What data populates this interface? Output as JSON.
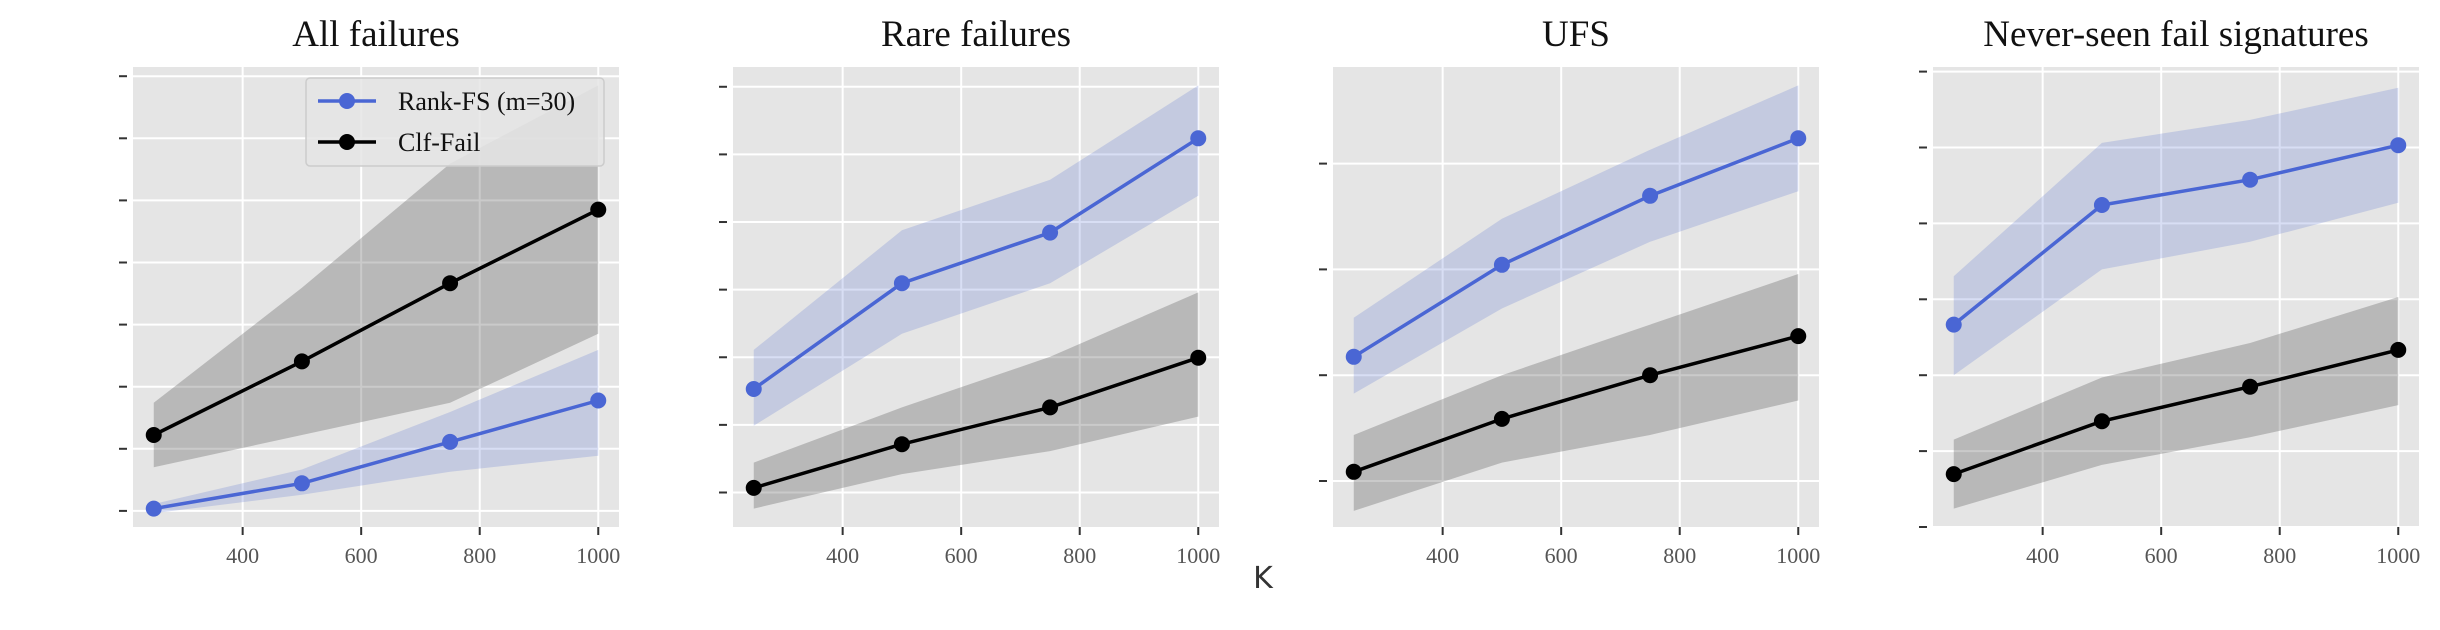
{
  "figure": {
    "xlabel": "K"
  },
  "legend": {
    "placement": "top-right of first panel"
  },
  "colors": {
    "Rank-FS (m=30)": "#4a66d4",
    "Clf-Fail": "#000000",
    "rank_band": "rgba(100,125,210,0.25)",
    "clf_band": "rgba(90,90,90,0.32)",
    "panel_bg": "#e5e5e5",
    "grid": "#ffffff"
  },
  "chart_data": [
    {
      "type": "line",
      "title": "All failures",
      "xlabel": "",
      "ylabel": "",
      "x": [
        250,
        500,
        750,
        1000
      ],
      "xlim": [
        215,
        1035
      ],
      "xticks": [
        400,
        600,
        800,
        1000
      ],
      "ylim": [
        0,
        1
      ],
      "yticks": [
        0.035,
        0.17,
        0.305,
        0.44,
        0.575,
        0.71,
        0.845,
        0.98
      ],
      "grid": true,
      "legend": true,
      "series": [
        {
          "name": "Rank-FS (m=30)",
          "values": [
            0.04,
            0.095,
            0.185,
            0.275
          ],
          "lower": [
            0.03,
            0.07,
            0.12,
            0.155
          ],
          "upper": [
            0.05,
            0.125,
            0.25,
            0.385
          ]
        },
        {
          "name": "Clf-Fail",
          "values": [
            0.2,
            0.36,
            0.53,
            0.69
          ],
          "lower": [
            0.13,
            0.2,
            0.27,
            0.42
          ],
          "upper": [
            0.27,
            0.52,
            0.79,
            0.96
          ]
        }
      ]
    },
    {
      "type": "line",
      "title": "Rare failures",
      "xlabel": "",
      "ylabel": "",
      "x": [
        250,
        500,
        750,
        1000
      ],
      "xlim": [
        215,
        1035
      ],
      "xticks": [
        400,
        600,
        800,
        1000
      ],
      "ylim": [
        0,
        1
      ],
      "yticks": [
        0.075,
        0.222,
        0.369,
        0.516,
        0.663,
        0.81,
        0.957
      ],
      "grid": true,
      "legend": false,
      "series": [
        {
          "name": "Rank-FS (m=30)",
          "values": [
            0.3,
            0.53,
            0.64,
            0.845
          ],
          "lower": [
            0.22,
            0.42,
            0.53,
            0.72
          ],
          "upper": [
            0.385,
            0.645,
            0.755,
            0.96
          ]
        },
        {
          "name": "Clf-Fail",
          "values": [
            0.085,
            0.18,
            0.26,
            0.368
          ],
          "lower": [
            0.04,
            0.115,
            0.165,
            0.24
          ],
          "upper": [
            0.14,
            0.26,
            0.37,
            0.51
          ]
        }
      ]
    },
    {
      "type": "line",
      "title": "UFS",
      "xlabel": "",
      "ylabel": "",
      "x": [
        250,
        500,
        750,
        1000
      ],
      "xlim": [
        215,
        1035
      ],
      "xticks": [
        400,
        600,
        800,
        1000
      ],
      "ylim": [
        0,
        1
      ],
      "yticks": [
        0.1,
        0.33,
        0.56,
        0.79
      ],
      "grid": true,
      "legend": false,
      "series": [
        {
          "name": "Rank-FS (m=30)",
          "values": [
            0.37,
            0.57,
            0.72,
            0.845
          ],
          "lower": [
            0.29,
            0.475,
            0.62,
            0.73
          ],
          "upper": [
            0.455,
            0.67,
            0.82,
            0.96
          ]
        },
        {
          "name": "Clf-Fail",
          "values": [
            0.12,
            0.235,
            0.33,
            0.415
          ],
          "lower": [
            0.035,
            0.14,
            0.2,
            0.275
          ],
          "upper": [
            0.2,
            0.33,
            0.44,
            0.55
          ]
        }
      ]
    },
    {
      "type": "line",
      "title": "Never-seen fail signatures",
      "xlabel": "",
      "ylabel": "",
      "x": [
        250,
        500,
        750,
        1000
      ],
      "xlim": [
        215,
        1035
      ],
      "xticks": [
        400,
        600,
        800,
        1000
      ],
      "ylim": [
        0,
        1
      ],
      "yticks": [
        0.0,
        0.165,
        0.33,
        0.495,
        0.66,
        0.825,
        0.99
      ],
      "grid": true,
      "legend": false,
      "series": [
        {
          "name": "Rank-FS (m=30)",
          "values": [
            0.44,
            0.7,
            0.755,
            0.83
          ],
          "lower": [
            0.33,
            0.56,
            0.62,
            0.705
          ],
          "upper": [
            0.545,
            0.835,
            0.885,
            0.955
          ]
        },
        {
          "name": "Clf-Fail",
          "values": [
            0.115,
            0.23,
            0.305,
            0.385
          ],
          "lower": [
            0.04,
            0.135,
            0.195,
            0.265
          ],
          "upper": [
            0.19,
            0.325,
            0.4,
            0.5
          ]
        }
      ]
    }
  ]
}
